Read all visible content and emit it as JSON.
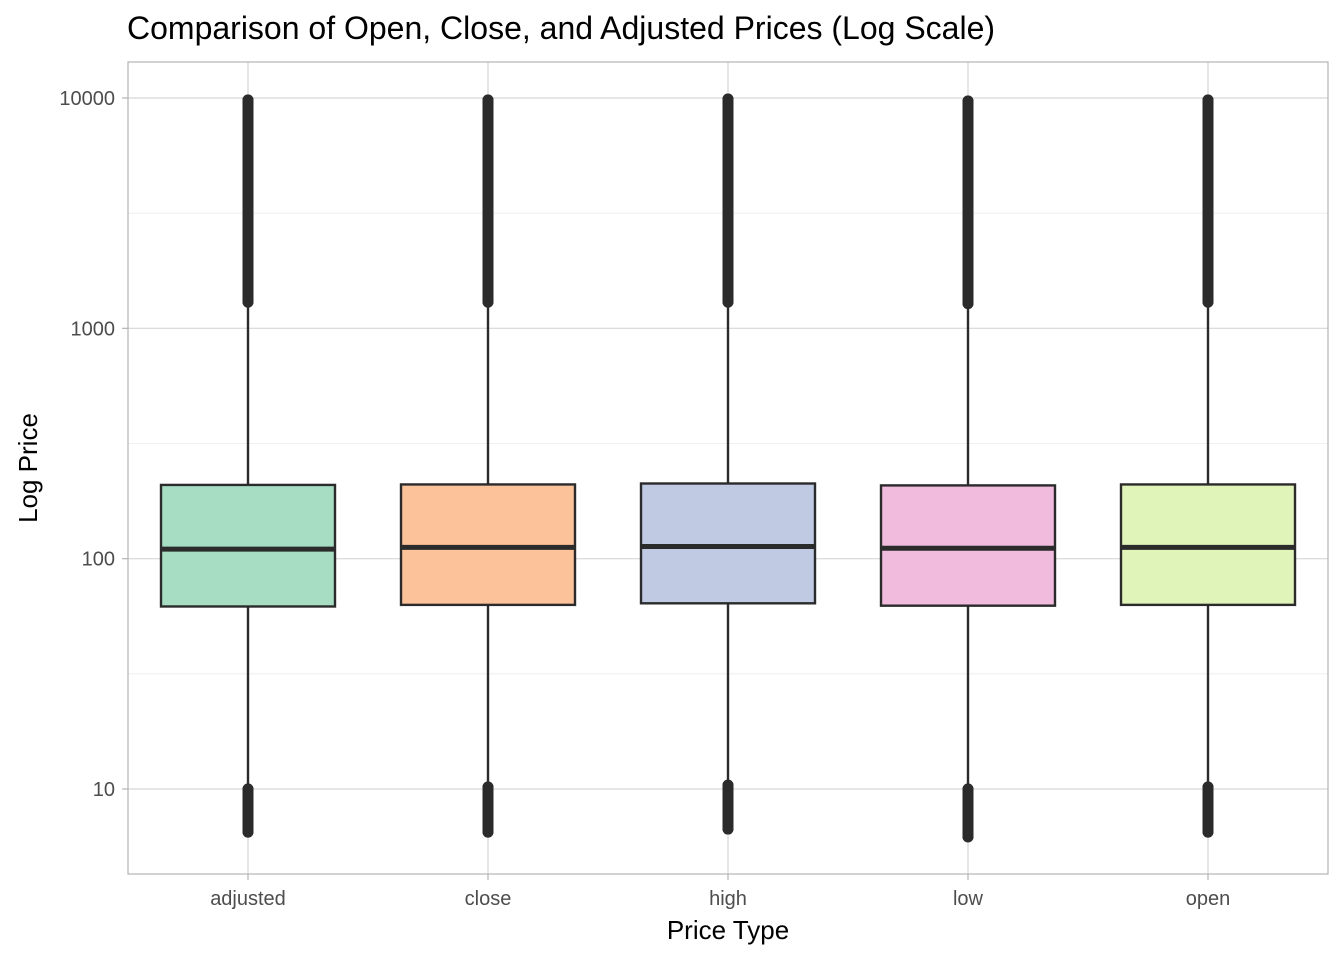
{
  "chart_data": {
    "type": "boxplot",
    "title": "Comparison of Open, Close, and Adjusted Prices (Log Scale)",
    "xlabel": "Price Type",
    "ylabel": "Log Price",
    "y_scale": "log10",
    "ylim": [
      4.5,
      14500
    ],
    "y_ticks": [
      10,
      100,
      1000,
      10000
    ],
    "y_tick_labels": [
      "10",
      "100",
      "1000",
      "10000"
    ],
    "categories": [
      "adjusted",
      "close",
      "high",
      "low",
      "open"
    ],
    "grid": true,
    "legend": "none",
    "boxes": [
      {
        "category": "adjusted",
        "color": "#A6DDC3",
        "q1": 62,
        "median": 110,
        "q3": 209,
        "whisker_low": 10.3,
        "whisker_high": 1250,
        "outliers_high": [
          1300,
          1500,
          1800,
          2200,
          2800,
          3500,
          4200,
          5000,
          6200,
          7500,
          8800,
          9800
        ],
        "outliers_low": [
          10,
          9,
          8,
          7.2,
          6.5
        ]
      },
      {
        "category": "close",
        "color": "#FCC29A",
        "q1": 63,
        "median": 112,
        "q3": 210,
        "whisker_low": 10.5,
        "whisker_high": 1260,
        "outliers_high": [
          1300,
          1500,
          1800,
          2200,
          2800,
          3500,
          4200,
          5000,
          6200,
          7500,
          8800,
          9800
        ],
        "outliers_low": [
          10.2,
          9,
          8,
          7.2,
          6.5
        ]
      },
      {
        "category": "high",
        "color": "#C0CAE2",
        "q1": 64,
        "median": 113,
        "q3": 212,
        "whisker_low": 10.7,
        "whisker_high": 1270,
        "outliers_high": [
          1300,
          1500,
          1800,
          2200,
          2800,
          3500,
          4200,
          5000,
          6200,
          7500,
          8800,
          9900
        ],
        "outliers_low": [
          10.4,
          9.2,
          8.2,
          7.4,
          6.7
        ]
      },
      {
        "category": "low",
        "color": "#F0BBDC",
        "q1": 62.5,
        "median": 111,
        "q3": 208,
        "whisker_low": 10.2,
        "whisker_high": 1240,
        "outliers_high": [
          1280,
          1500,
          1800,
          2200,
          2800,
          3500,
          4200,
          5000,
          6200,
          7500,
          8800,
          9700
        ],
        "outliers_low": [
          10,
          9,
          8,
          7,
          6.2
        ]
      },
      {
        "category": "open",
        "color": "#E0F4BA",
        "q1": 63,
        "median": 112,
        "q3": 210,
        "whisker_low": 10.4,
        "whisker_high": 1260,
        "outliers_high": [
          1300,
          1500,
          1800,
          2200,
          2800,
          3500,
          4200,
          5000,
          6200,
          7500,
          8800,
          9800
        ],
        "outliers_low": [
          10.2,
          9,
          8,
          7.2,
          6.5
        ]
      }
    ]
  }
}
